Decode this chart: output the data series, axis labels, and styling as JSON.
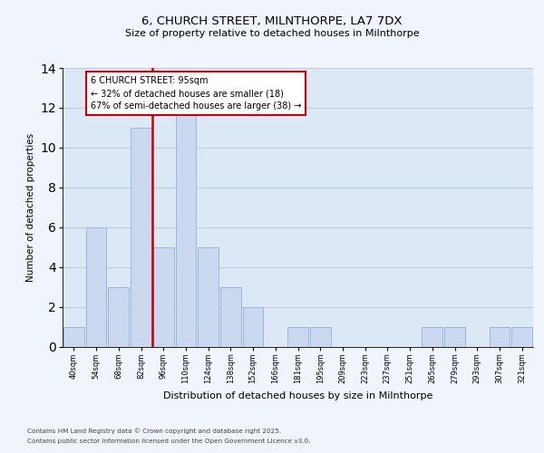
{
  "title1": "6, CHURCH STREET, MILNTHORPE, LA7 7DX",
  "title2": "Size of property relative to detached houses in Milnthorpe",
  "xlabel": "Distribution of detached houses by size in Milnthorpe",
  "ylabel": "Number of detached properties",
  "bar_labels": [
    "40sqm",
    "54sqm",
    "68sqm",
    "82sqm",
    "96sqm",
    "110sqm",
    "124sqm",
    "138sqm",
    "152sqm",
    "166sqm",
    "181sqm",
    "195sqm",
    "209sqm",
    "223sqm",
    "237sqm",
    "251sqm",
    "265sqm",
    "279sqm",
    "293sqm",
    "307sqm",
    "321sqm"
  ],
  "bar_values": [
    1,
    6,
    3,
    11,
    5,
    12,
    5,
    3,
    2,
    0,
    1,
    1,
    0,
    0,
    0,
    0,
    1,
    1,
    0,
    1,
    1
  ],
  "bar_color": "#cad9f0",
  "bar_edgecolor": "#9ab5d8",
  "subject_label": "6 CHURCH STREET: 95sqm",
  "annotation_line1": "← 32% of detached houses are smaller (18)",
  "annotation_line2": "67% of semi-detached houses are larger (38) →",
  "annotation_box_facecolor": "#ffffff",
  "annotation_box_edgecolor": "#cc0000",
  "vline_color": "#cc0000",
  "vline_x_index": 3.5,
  "ylim": [
    0,
    14
  ],
  "yticks": [
    0,
    2,
    4,
    6,
    8,
    10,
    12,
    14
  ],
  "grid_color": "#b8ccdf",
  "background_color": "#dce8f5",
  "fig_facecolor": "#f0f4fc",
  "footer1": "Contains HM Land Registry data © Crown copyright and database right 2025.",
  "footer2": "Contains public sector information licensed under the Open Government Licence v3.0."
}
